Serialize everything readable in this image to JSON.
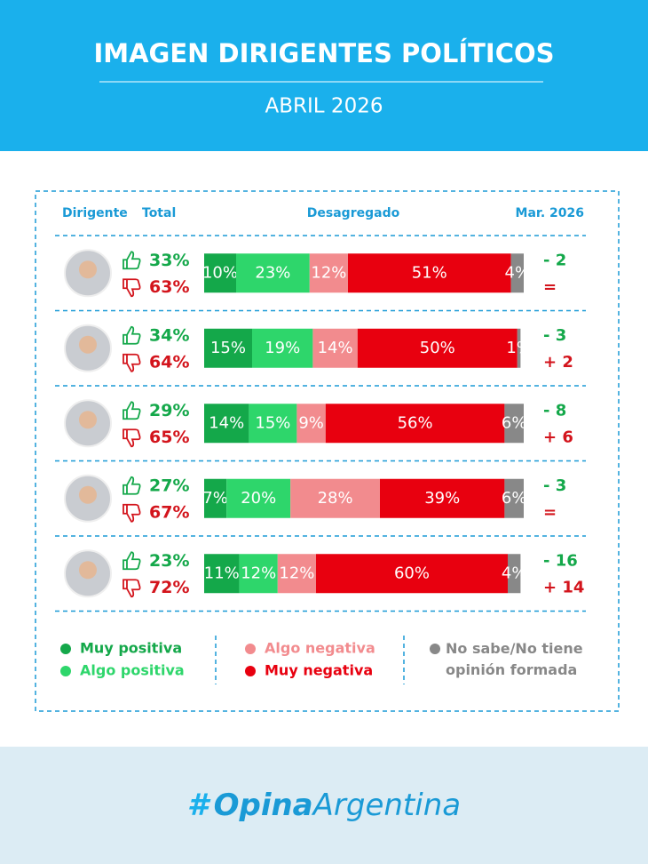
{
  "header": {
    "title": "IMAGEN DIRIGENTES POLÍTICOS",
    "subtitle": "ABRIL 2026"
  },
  "chart_data": {
    "type": "stacked-bar",
    "column_labels": {
      "leader": "Dirigente",
      "total": "Total",
      "breakdown": "Desagregado",
      "previous": "Mar. 2026"
    },
    "xlim": [
      0,
      100
    ],
    "series": [
      {
        "name": "Muy positiva",
        "color": "#14a84a",
        "values": [
          10,
          15,
          14,
          7,
          11
        ],
        "value_labels": [
          "10%",
          "15%",
          "14%",
          "7%",
          "11%"
        ]
      },
      {
        "name": "Algo positiva",
        "color": "#2ed66b",
        "values": [
          23,
          19,
          15,
          20,
          12
        ],
        "value_labels": [
          "23%",
          "19%",
          "15%",
          "20%",
          "12%"
        ]
      },
      {
        "name": "Algo negativa",
        "color": "#f28b8e",
        "values": [
          12,
          14,
          9,
          28,
          12
        ],
        "value_labels": [
          "12%",
          "14%",
          "9%",
          "28%",
          "12%"
        ]
      },
      {
        "name": "Muy negativa",
        "color": "#e8000f",
        "values": [
          51,
          50,
          56,
          39,
          60
        ],
        "value_labels": [
          "51%",
          "50%",
          "56%",
          "39%",
          "60%"
        ]
      },
      {
        "name": "No sabe/No tiene opinión formada",
        "color": "#888888",
        "values": [
          4,
          1,
          6,
          6,
          4
        ],
        "value_labels": [
          "4%",
          "1%",
          "6%",
          "6%",
          "4%"
        ]
      }
    ],
    "totals": {
      "positive": {
        "color": "#14a84a",
        "values": [
          33,
          34,
          29,
          27,
          23
        ],
        "value_labels": [
          "33%",
          "34%",
          "29%",
          "27%",
          "23%"
        ]
      },
      "negative": {
        "color": "#d3141c",
        "values": [
          63,
          64,
          65,
          67,
          72
        ],
        "value_labels": [
          "63%",
          "64%",
          "65%",
          "67%",
          "72%"
        ]
      }
    },
    "change": {
      "positive": {
        "values": [
          -2,
          -3,
          -8,
          -3,
          -16
        ],
        "value_labels": [
          "- 2",
          "- 3",
          "- 8",
          "- 3",
          "- 16"
        ]
      },
      "negative": {
        "values": [
          0,
          2,
          6,
          0,
          14
        ],
        "value_labels": [
          "=",
          "+ 2",
          "+ 6",
          "=",
          "+ 14"
        ]
      }
    }
  },
  "footer": {
    "brand_mark": "#",
    "brand_bold": "Opina",
    "brand_rest": "Argentina"
  }
}
